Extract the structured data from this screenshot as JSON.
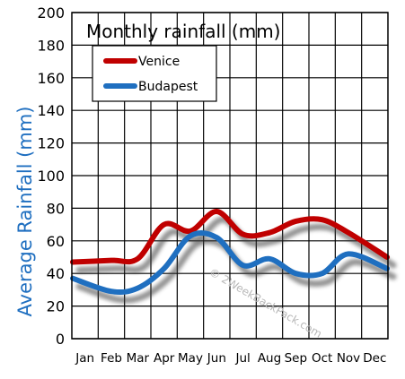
{
  "chart_data": {
    "type": "line",
    "title": "Monthly rainfall (mm)",
    "ylabel": "Average Rainfall (mm)",
    "xlabel": "",
    "watermark": "© 2WeekBackPack.com",
    "categories": [
      "Jan",
      "Feb",
      "Mar",
      "Apr",
      "May",
      "Jun",
      "Jul",
      "Aug",
      "Sep",
      "Oct",
      "Nov",
      "Dec"
    ],
    "ylim": [
      0,
      200
    ],
    "yticks": [
      "0",
      "20",
      "40",
      "60",
      "80",
      "100",
      "120",
      "140",
      "160",
      "180",
      "200"
    ],
    "grid": true,
    "legend_position": "top-left",
    "series": [
      {
        "name": "Venice",
        "color": "#c00000",
        "values": [
          47,
          48,
          49,
          70,
          66,
          78,
          64,
          65,
          72,
          73,
          65,
          50
        ]
      },
      {
        "name": "Budapest",
        "color": "#1f6fc0",
        "values": [
          37,
          29,
          31,
          43,
          63,
          62,
          45,
          49,
          40,
          40,
          52,
          43
        ]
      }
    ]
  }
}
